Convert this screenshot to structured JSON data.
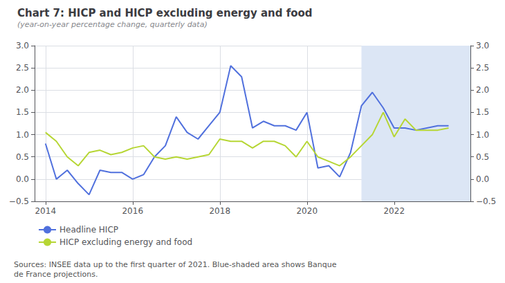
{
  "chart_data": {
    "type": "line",
    "title": "Chart 7: HICP and HICP excluding energy and food",
    "subtitle": "(year-on-year percentage change, quarterly data)",
    "annotations": [
      "Sources: INSEE data up to the first quarter of 2021. Blue-shaded area shows Banque\nde France projections."
    ],
    "x": [
      2014.0,
      2014.25,
      2014.5,
      2014.75,
      2015.0,
      2015.25,
      2015.5,
      2015.75,
      2016.0,
      2016.25,
      2016.5,
      2016.75,
      2017.0,
      2017.25,
      2017.5,
      2017.75,
      2018.0,
      2018.25,
      2018.5,
      2018.75,
      2019.0,
      2019.25,
      2019.5,
      2019.75,
      2020.0,
      2020.25,
      2020.5,
      2020.75,
      2021.0,
      2021.25,
      2021.5,
      2021.75,
      2022.0,
      2022.25,
      2022.5,
      2022.75,
      2023.0,
      2023.25
    ],
    "series": [
      {
        "name": "Headline HICP",
        "values": [
          0.8,
          0.0,
          0.2,
          -0.1,
          -0.35,
          0.2,
          0.15,
          0.15,
          0.0,
          0.1,
          0.5,
          0.75,
          1.4,
          1.05,
          0.9,
          1.2,
          1.5,
          2.55,
          2.3,
          1.15,
          1.3,
          1.2,
          1.2,
          1.1,
          1.5,
          0.25,
          0.3,
          0.05,
          0.6,
          1.65,
          1.95,
          1.6,
          1.15,
          1.15,
          1.1,
          1.15,
          1.2,
          1.2
        ]
      },
      {
        "name": "HICP excluding energy and food",
        "values": [
          1.05,
          0.85,
          0.5,
          0.3,
          0.6,
          0.65,
          0.55,
          0.6,
          0.7,
          0.75,
          0.5,
          0.45,
          0.5,
          0.45,
          0.5,
          0.55,
          0.9,
          0.85,
          0.85,
          0.7,
          0.85,
          0.85,
          0.75,
          0.5,
          0.85,
          0.5,
          0.4,
          0.3,
          0.5,
          0.75,
          1.0,
          1.5,
          0.95,
          1.35,
          1.1,
          1.1,
          1.1,
          1.15
        ]
      }
    ],
    "shade": {
      "x": [
        2021.25,
        2023.75
      ],
      "color": "#dce6f5"
    },
    "xlim": [
      2013.75,
      2023.75
    ],
    "xticks": [
      2014,
      2016,
      2018,
      2020,
      2022
    ],
    "ylim": [
      -0.5,
      3.0
    ],
    "yticks": [
      {
        "value": -0.5,
        "label": "−0.5"
      },
      {
        "value": 0,
        "label": "0.0"
      },
      0.5,
      {
        "value": 1,
        "label": "1.0"
      },
      1.5,
      {
        "value": 2,
        "label": "2.0"
      },
      2.5,
      {
        "value": 3,
        "label": "3.0"
      }
    ],
    "y2lim": [
      -0.5,
      3.0
    ],
    "y2ticks": [
      {
        "value": -0.5,
        "label": "−0.5"
      },
      {
        "value": 0,
        "label": "0.0"
      },
      0.5,
      {
        "value": 1,
        "label": "1.0"
      },
      1.5,
      {
        "value": 2,
        "label": "2.0"
      },
      2.5,
      {
        "value": 3,
        "label": "3.0"
      }
    ],
    "grid": true,
    "legend": "lower left"
  }
}
